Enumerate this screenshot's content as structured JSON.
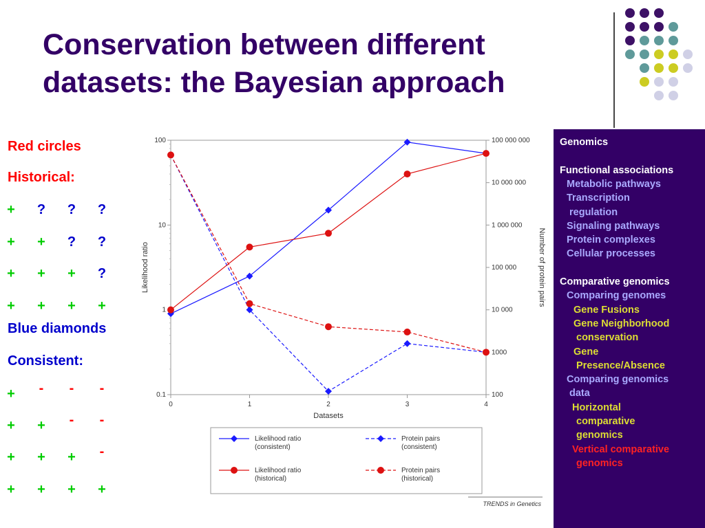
{
  "slide": {
    "title_line1": "Conservation between different",
    "title_line2": "datasets: the Bayesian approach",
    "colors": {
      "title": "#330066",
      "red": "#ff0000",
      "green": "#00cc00",
      "blue": "#0000cc",
      "panel": "#330066"
    }
  },
  "left_panel": {
    "red_label": "Red circles",
    "red_sub": "Historical:",
    "red_rows": [
      [
        "+",
        "?",
        "?",
        "?"
      ],
      [
        "+",
        "+",
        "?",
        "?"
      ],
      [
        "+",
        "+",
        "+",
        "?"
      ],
      [
        "+",
        "+",
        "+",
        "+"
      ]
    ],
    "blue_label": "Blue diamonds",
    "blue_sub": "Consistent:",
    "blue_rows": [
      [
        "+",
        "-",
        "-",
        "-"
      ],
      [
        "+",
        "+",
        "-",
        "-"
      ],
      [
        "+",
        "+",
        "+",
        "-"
      ],
      [
        "+",
        "+",
        "+",
        "+"
      ]
    ]
  },
  "chart_data": {
    "type": "line",
    "xlabel": "Datasets",
    "ylabel_left": "Likelihood ratio",
    "ylabel_right": "Number of protein pairs",
    "x": [
      0,
      1,
      2,
      3,
      4
    ],
    "xlim": [
      0,
      4
    ],
    "y_left_scale": "log",
    "y_left_lim": [
      0.1,
      100
    ],
    "y_left_ticks": [
      "0.1",
      "1",
      "10",
      "100"
    ],
    "y_right_scale": "log",
    "y_right_lim": [
      100,
      100000000
    ],
    "y_right_ticks": [
      "100",
      "1000",
      "10 000",
      "100 000",
      "1 000 000",
      "10 000 000",
      "100 000 000"
    ],
    "grid": false,
    "legend_position": "bottom",
    "series": [
      {
        "name": "Likelihood ratio (consistent)",
        "legend_line1": "Likelihood ratio",
        "legend_line2": "(consistent)",
        "axis": "left",
        "color": "#1a1aff",
        "marker": "diamond",
        "dashed": false,
        "values": [
          0.9,
          2.5,
          15,
          95,
          70
        ]
      },
      {
        "name": "Protein pairs (consistent)",
        "legend_line1": "Protein pairs",
        "legend_line2": "(consistent)",
        "axis": "right",
        "color": "#1a1aff",
        "marker": "diamond",
        "dashed": true,
        "values": [
          45000000,
          10000,
          120,
          1600,
          1000
        ]
      },
      {
        "name": "Likelihood ratio (historical)",
        "legend_line1": "Likelihood ratio",
        "legend_line2": "(historical)",
        "axis": "left",
        "color": "#dd1111",
        "marker": "circle",
        "dashed": false,
        "values": [
          1.0,
          5.5,
          8,
          40,
          70
        ]
      },
      {
        "name": "Protein pairs (historical)",
        "legend_line1": "Protein pairs",
        "legend_line2": "(historical)",
        "axis": "right",
        "color": "#dd1111",
        "marker": "circle",
        "dashed": true,
        "values": [
          45000000,
          14000,
          4000,
          3000,
          1000
        ]
      }
    ],
    "source": "TRENDS in Genetics"
  },
  "right_panel": {
    "items": [
      {
        "text": "Genomics",
        "color": "#ffffff"
      },
      {
        "text": "",
        "color": "#ffffff"
      },
      {
        "text": "Functional associations",
        "color": "#ffffff"
      },
      {
        "text": "Metabolic pathways",
        "color": "#aaaaff"
      },
      {
        "text": "Transcription",
        "color": "#aaaaff"
      },
      {
        "text": "regulation",
        "color": "#aaaaff"
      },
      {
        "text": "Signaling pathways",
        "color": "#aaaaff"
      },
      {
        "text": "Protein complexes",
        "color": "#aaaaff"
      },
      {
        "text": "Cellular processes",
        "color": "#aaaaff"
      },
      {
        "text": "",
        "color": "#ffffff"
      },
      {
        "text": "Comparative genomics",
        "color": "#ffffff"
      },
      {
        "text": "Comparing genomes",
        "color": "#aaaaff"
      },
      {
        "text": "Gene Fusions",
        "color": "#dddd33"
      },
      {
        "text": "Gene Neighborhood",
        "color": "#dddd33"
      },
      {
        "text": "conservation",
        "color": "#dddd33"
      },
      {
        "text": "Gene",
        "color": "#dddd33"
      },
      {
        "text": "Presence/Absence",
        "color": "#dddd33"
      },
      {
        "text": "Comparing genomics",
        "color": "#aaaaff"
      },
      {
        "text": "data",
        "color": "#aaaaff"
      },
      {
        "text": "Horizontal",
        "color": "#dddd33"
      },
      {
        "text": "comparative",
        "color": "#dddd33"
      },
      {
        "text": "genomics",
        "color": "#dddd33"
      },
      {
        "text": "Vertical comparative",
        "color": "#ff2222"
      },
      {
        "text": "genomics",
        "color": "#ff2222"
      }
    ]
  },
  "decor": {
    "dot_colors": {
      "p": "#3d1166",
      "t": "#5f9a9a",
      "y": "#cccc22",
      "l": "#d0d0e6"
    },
    "dot_rows": [
      "ppp",
      "pppt",
      "pttt",
      "ttyyl",
      "tyyl",
      "yll",
      "ll"
    ]
  }
}
